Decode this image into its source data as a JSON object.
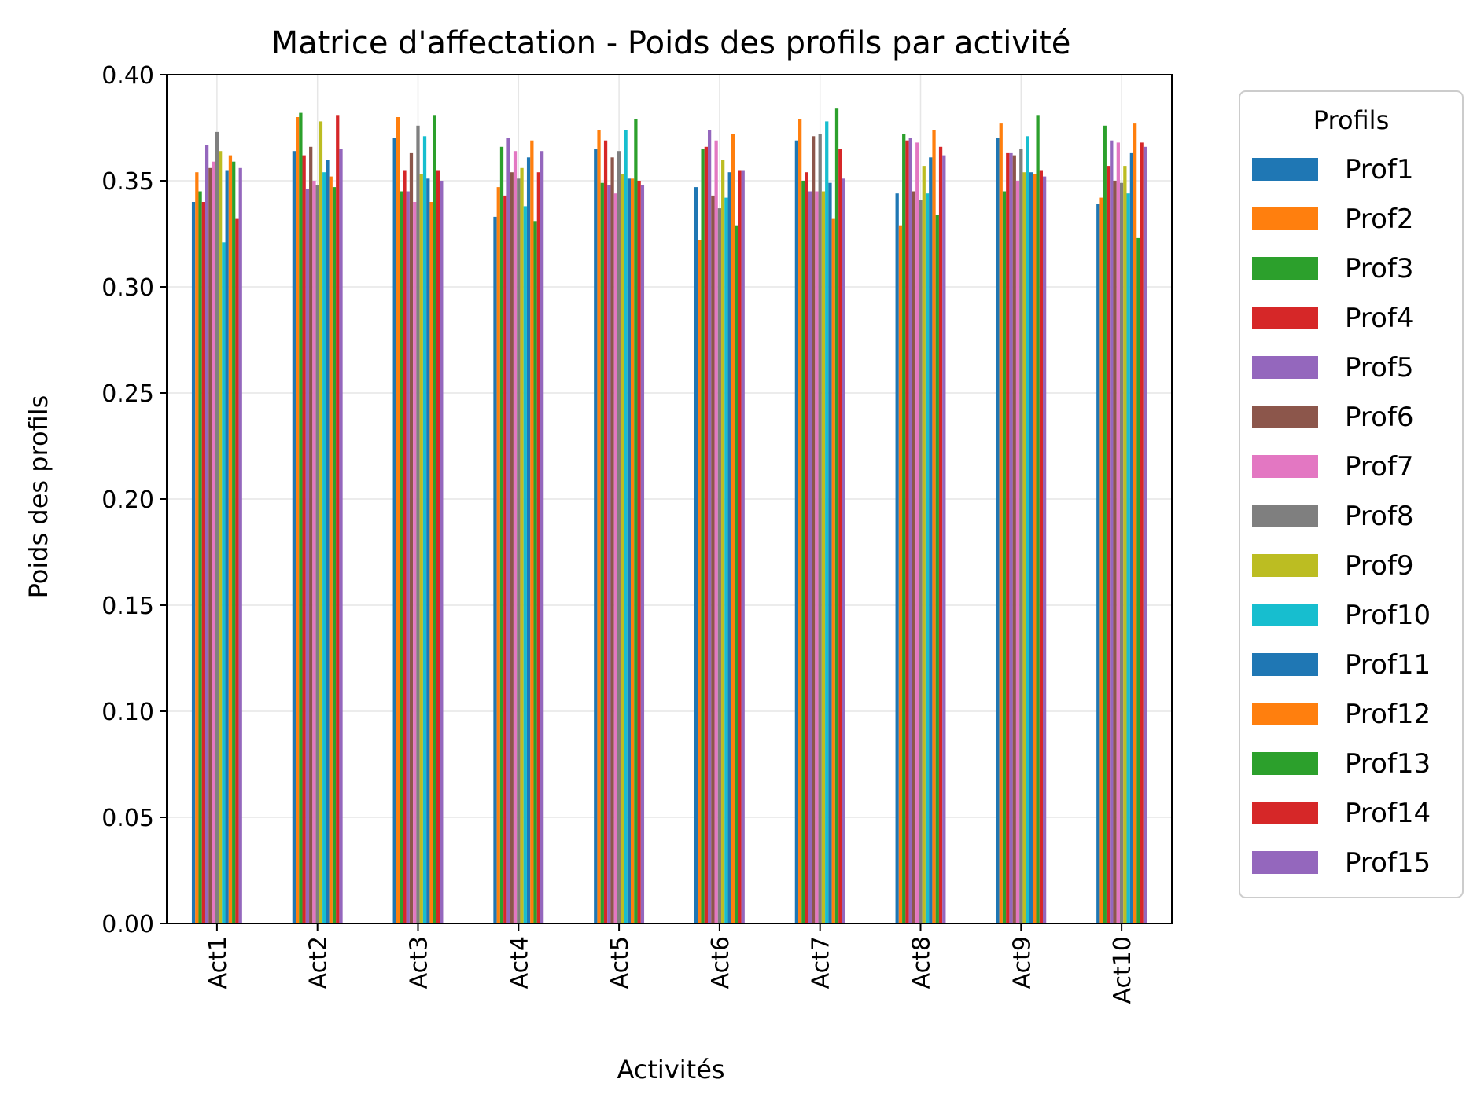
{
  "chart_data": {
    "type": "bar",
    "title": "Matrice d'affectation - Poids des profils par activité",
    "xlabel": "Activités",
    "ylabel": "Poids des profils",
    "ylim": [
      0,
      0.4
    ],
    "yticks": [
      "0.00",
      "0.05",
      "0.10",
      "0.15",
      "0.20",
      "0.25",
      "0.30",
      "0.35",
      "0.40"
    ],
    "grid": true,
    "legend": {
      "title": "Profils",
      "position": "outside-right"
    },
    "categories": [
      "Act1",
      "Act2",
      "Act3",
      "Act4",
      "Act5",
      "Act6",
      "Act7",
      "Act8",
      "Act9",
      "Act10"
    ],
    "series": [
      {
        "name": "Prof1",
        "color": "#1f77b4",
        "values": [
          0.34,
          0.364,
          0.37,
          0.333,
          0.365,
          0.347,
          0.369,
          0.344,
          0.37,
          0.339
        ]
      },
      {
        "name": "Prof2",
        "color": "#ff7f0e",
        "values": [
          0.354,
          0.38,
          0.38,
          0.347,
          0.374,
          0.322,
          0.379,
          0.329,
          0.377,
          0.342
        ]
      },
      {
        "name": "Prof3",
        "color": "#2ca02c",
        "values": [
          0.345,
          0.382,
          0.345,
          0.366,
          0.349,
          0.365,
          0.35,
          0.372,
          0.345,
          0.376
        ]
      },
      {
        "name": "Prof4",
        "color": "#d62728",
        "values": [
          0.34,
          0.362,
          0.355,
          0.343,
          0.369,
          0.366,
          0.354,
          0.369,
          0.363,
          0.357
        ]
      },
      {
        "name": "Prof5",
        "color": "#9467bd",
        "values": [
          0.367,
          0.346,
          0.345,
          0.37,
          0.348,
          0.374,
          0.345,
          0.37,
          0.363,
          0.369
        ]
      },
      {
        "name": "Prof6",
        "color": "#8c564b",
        "values": [
          0.356,
          0.366,
          0.363,
          0.354,
          0.361,
          0.343,
          0.371,
          0.345,
          0.362,
          0.35
        ]
      },
      {
        "name": "Prof7",
        "color": "#e377c2",
        "values": [
          0.359,
          0.35,
          0.34,
          0.364,
          0.344,
          0.369,
          0.345,
          0.368,
          0.35,
          0.368
        ]
      },
      {
        "name": "Prof8",
        "color": "#7f7f7f",
        "values": [
          0.373,
          0.348,
          0.376,
          0.351,
          0.364,
          0.337,
          0.372,
          0.341,
          0.365,
          0.349
        ]
      },
      {
        "name": "Prof9",
        "color": "#bcbd22",
        "values": [
          0.364,
          0.378,
          0.353,
          0.356,
          0.353,
          0.36,
          0.345,
          0.357,
          0.354,
          0.357
        ]
      },
      {
        "name": "Prof10",
        "color": "#17becf",
        "values": [
          0.321,
          0.354,
          0.371,
          0.338,
          0.374,
          0.342,
          0.378,
          0.344,
          0.371,
          0.344
        ]
      },
      {
        "name": "Prof11",
        "color": "#1f77b4",
        "values": [
          0.355,
          0.36,
          0.351,
          0.361,
          0.351,
          0.354,
          0.349,
          0.361,
          0.354,
          0.363
        ]
      },
      {
        "name": "Prof12",
        "color": "#ff7f0e",
        "values": [
          0.362,
          0.352,
          0.34,
          0.369,
          0.351,
          0.372,
          0.332,
          0.374,
          0.353,
          0.377
        ]
      },
      {
        "name": "Prof13",
        "color": "#2ca02c",
        "values": [
          0.359,
          0.347,
          0.381,
          0.331,
          0.379,
          0.329,
          0.384,
          0.334,
          0.381,
          0.323
        ]
      },
      {
        "name": "Prof14",
        "color": "#d62728",
        "values": [
          0.332,
          0.381,
          0.355,
          0.354,
          0.35,
          0.355,
          0.365,
          0.366,
          0.355,
          0.368
        ]
      },
      {
        "name": "Prof15",
        "color": "#9467bd",
        "values": [
          0.356,
          0.365,
          0.35,
          0.364,
          0.348,
          0.355,
          0.351,
          0.362,
          0.352,
          0.366
        ]
      }
    ]
  }
}
